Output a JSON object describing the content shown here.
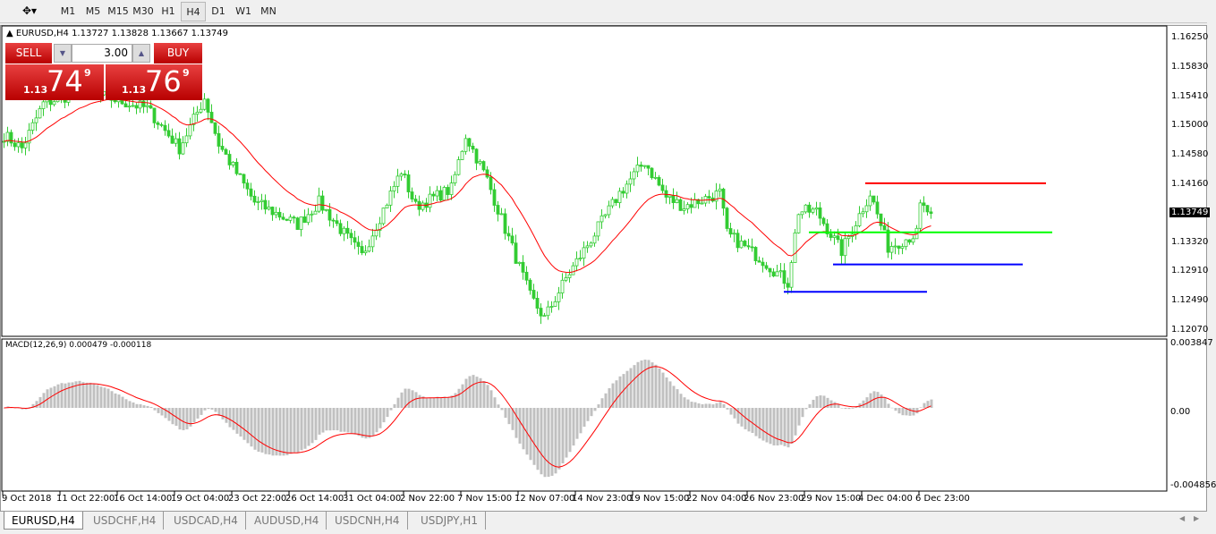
{
  "toolbar": {
    "timeframes": [
      "M1",
      "M5",
      "M15",
      "M30",
      "H1",
      "H4",
      "D1",
      "W1",
      "MN"
    ],
    "active": "H4"
  },
  "chart": {
    "info": "EURUSD,H4  1.13727 1.13828 1.13667 1.13749",
    "trade": {
      "sell_label": "SELL",
      "buy_label": "BUY",
      "volume": "3.00",
      "sell_prefix": "1.13",
      "sell_big": "74",
      "sell_sup": "9",
      "buy_prefix": "1.13",
      "buy_big": "76",
      "buy_sup": "9"
    },
    "price_axis": [
      "1.16250",
      "1.15830",
      "1.15410",
      "1.15000",
      "1.14580",
      "1.14160",
      "1.13320",
      "1.12910",
      "1.12490",
      "1.12070"
    ],
    "current_price": "1.13749",
    "macd_label": "MACD(12,26,9) 0.000479 -0.000118",
    "macd_axis": [
      "0.003847",
      "0.00",
      "-0.004856"
    ],
    "time_axis": [
      "9 Oct 2018",
      "11 Oct 22:00",
      "16 Oct 14:00",
      "19 Oct 04:00",
      "23 Oct 22:00",
      "26 Oct 14:00",
      "31 Oct 04:00",
      "2 Nov 22:00",
      "7 Nov 15:00",
      "12 Nov 07:00",
      "14 Nov 23:00",
      "19 Nov 15:00",
      "22 Nov 04:00",
      "26 Nov 23:00",
      "29 Nov 15:00",
      "4 Dec 04:00",
      "6 Dec 23:00"
    ],
    "colors": {
      "bull": "#33cc33",
      "bear": "#33cc33",
      "ma": "#ff0000",
      "hist": "#c0c0c0",
      "signal": "#ff0000"
    },
    "price_path": [
      [
        0,
        1.1487
      ],
      [
        5,
        1.1468
      ],
      [
        11,
        1.1532
      ],
      [
        22,
        1.155
      ],
      [
        40,
        1.1525
      ],
      [
        49,
        1.1468
      ],
      [
        56,
        1.154
      ],
      [
        60,
        1.1474
      ],
      [
        70,
        1.1391
      ],
      [
        82,
        1.1359
      ],
      [
        88,
        1.1391
      ],
      [
        100,
        1.1314
      ],
      [
        111,
        1.1436
      ],
      [
        115,
        1.1385
      ],
      [
        125,
        1.141
      ],
      [
        129,
        1.1487
      ],
      [
        135,
        1.1423
      ],
      [
        140,
        1.1353
      ],
      [
        147,
        1.1257
      ],
      [
        151,
        1.1225
      ],
      [
        157,
        1.1282
      ],
      [
        165,
        1.1346
      ],
      [
        172,
        1.1404
      ],
      [
        179,
        1.1449
      ],
      [
        185,
        1.1398
      ],
      [
        190,
        1.1385
      ],
      [
        200,
        1.1404
      ],
      [
        202,
        1.1346
      ],
      [
        212,
        1.1308
      ],
      [
        219,
        1.1276
      ],
      [
        222,
        1.1378
      ],
      [
        227,
        1.1378
      ],
      [
        234,
        1.1321
      ],
      [
        242,
        1.1404
      ],
      [
        247,
        1.1327
      ],
      [
        255,
        1.1346
      ],
      [
        256,
        1.1385
      ],
      [
        259,
        1.1375
      ]
    ],
    "levels": [
      {
        "price": 1.1418,
        "color": "#ff0000"
      },
      {
        "price": 1.1348,
        "color": "#00ff00"
      },
      {
        "price": 1.1302,
        "color": "#0000ff"
      },
      {
        "price": 1.1263,
        "color": "#0000ff"
      }
    ]
  },
  "tabs": [
    "EURUSD,H4",
    "USDCHF,H4",
    "USDCAD,H4",
    "AUDUSD,H4",
    "USDCNH,H4",
    "USDJPY,H1"
  ]
}
